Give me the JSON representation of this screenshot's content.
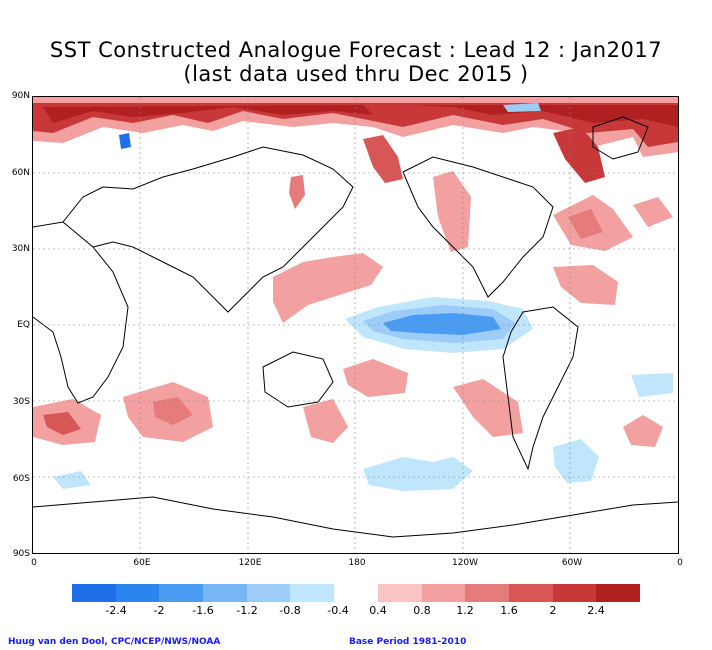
{
  "title_line1": "SST Constructed Analogue Forecast : Lead 12 : Jan2017",
  "title_line2": "(last data used thru Dec 2015 )",
  "lat_labels": [
    "90N",
    "60N",
    "30N",
    "EQ",
    "30S",
    "60S",
    "90S"
  ],
  "lon_labels": [
    "0",
    "60E",
    "120E",
    "180",
    "120W",
    "60W",
    "0"
  ],
  "colorbar": {
    "negative_colors": [
      "#1f6fe8",
      "#2b85f0",
      "#4a9cf2",
      "#77b6f5",
      "#9cccf7",
      "#bfe6fb"
    ],
    "positive_colors": [
      "#fbc4c4",
      "#f2a0a0",
      "#e57b7b",
      "#d95656",
      "#c93838",
      "#b02020"
    ],
    "labels": [
      "-2.4",
      "-2",
      "-1.6",
      "-1.2",
      "-0.8",
      "-0.4",
      "0.4",
      "0.8",
      "1.2",
      "1.6",
      "2",
      "2.4"
    ]
  },
  "credit_left": "Huug van den Dool, CPC/NCEP/NWS/NOAA",
  "credit_right": "Base Period 1981-2010"
}
